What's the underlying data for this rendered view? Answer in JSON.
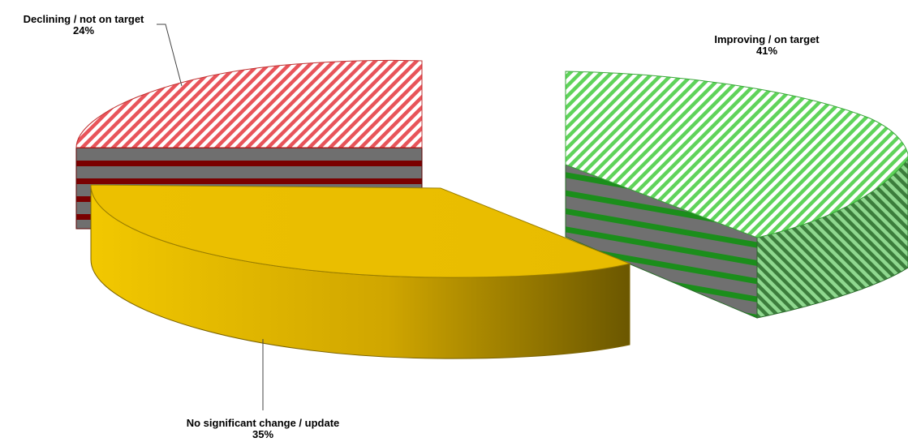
{
  "chart_data": {
    "type": "pie",
    "title": "",
    "exploded": true,
    "three_d": true,
    "slices": [
      {
        "name": "Improving / on target",
        "percent_label": "41%",
        "value": 41,
        "color": "#5fd35a",
        "side_color": "#1a8a1a",
        "pattern": "diagonal-hatch"
      },
      {
        "name": "No significant change / update",
        "percent_label": "35%",
        "value": 35,
        "color": "#e9bd00",
        "side_color": "#7a6200",
        "pattern": "solid-gradient"
      },
      {
        "name": "Declining / not on target",
        "percent_label": "24%",
        "value": 24,
        "color": "#e8545a",
        "side_color": "#8a0000",
        "pattern": "diagonal-hatch"
      }
    ]
  }
}
